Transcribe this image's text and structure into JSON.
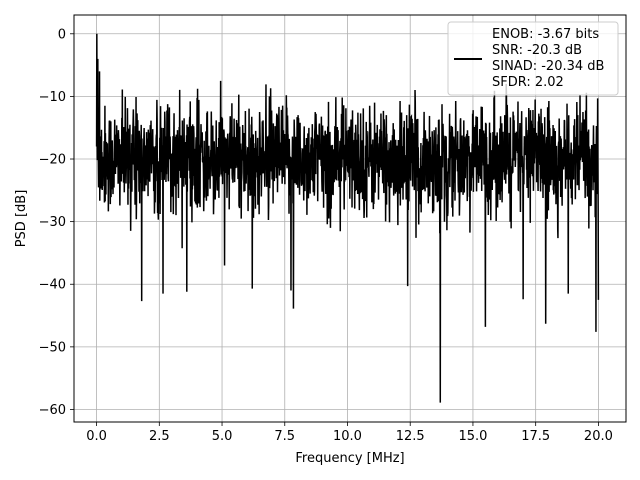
{
  "chart_data": {
    "type": "line",
    "xlabel": "Frequency [MHz]",
    "ylabel": "PSD [dB]",
    "xlim": [
      -0.9,
      21.1
    ],
    "ylim": [
      -62,
      3
    ],
    "xticks": [
      0.0,
      2.5,
      5.0,
      7.5,
      10.0,
      12.5,
      15.0,
      17.5,
      20.0
    ],
    "xtick_labels": [
      "0.0",
      "2.5",
      "5.0",
      "7.5",
      "10.0",
      "12.5",
      "15.0",
      "17.5",
      "20.0"
    ],
    "yticks": [
      0,
      -10,
      -20,
      -30,
      -40,
      -50,
      -60
    ],
    "ytick_labels": [
      "0",
      "−10",
      "−20",
      "−30",
      "−40",
      "−50",
      "−60"
    ],
    "grid": true,
    "legend_position": "top-right",
    "series": [
      {
        "color": "#000000",
        "x_range": [
          0,
          20
        ],
        "points": 2048,
        "noise_floor_mean_db": -20,
        "upper_envelope_db": -8,
        "lower_envelope_db": -28,
        "peak": {
          "x": 0.0,
          "y": 0.0
        },
        "notable_dips": [
          {
            "x": 1.8,
            "y": -42.7
          },
          {
            "x": 2.65,
            "y": -41.5
          },
          {
            "x": 3.6,
            "y": -41.2
          },
          {
            "x": 5.1,
            "y": -37.0
          },
          {
            "x": 6.2,
            "y": -40.7
          },
          {
            "x": 7.75,
            "y": -41.0
          },
          {
            "x": 7.85,
            "y": -43.9
          },
          {
            "x": 12.4,
            "y": -40.3
          },
          {
            "x": 13.7,
            "y": -58.9
          },
          {
            "x": 15.5,
            "y": -46.8
          },
          {
            "x": 17.0,
            "y": -42.4
          },
          {
            "x": 17.9,
            "y": -46.3
          },
          {
            "x": 18.8,
            "y": -41.5
          },
          {
            "x": 19.9,
            "y": -47.6
          },
          {
            "x": 20.0,
            "y": -42.5
          }
        ]
      }
    ],
    "legend": {
      "lines": [
        "ENOB: -3.67 bits",
        "SNR: -20.3 dB",
        "SINAD: -20.34 dB",
        "SFDR: 2.02"
      ]
    }
  }
}
